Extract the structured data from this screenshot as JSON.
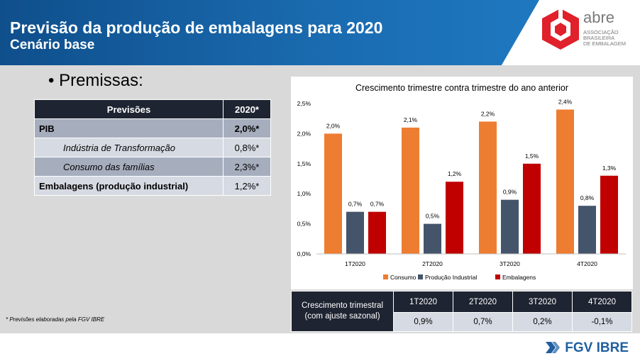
{
  "header": {
    "title": "Previsão da produção de embalagens para 2020",
    "subtitle": "Cenário base"
  },
  "logo": {
    "name": "abre",
    "line1": "ASSOCIAÇÃO",
    "line2": "BRASILEIRA",
    "line3": "DE EMBALAGEM"
  },
  "bullet": "• Premissas:",
  "forecast_table": {
    "col1": "Previsões",
    "col2": "2020*",
    "rows": [
      {
        "label": "PIB",
        "value": "2,0%*"
      },
      {
        "label": "Indústria de Transformação",
        "value": "0,8%*"
      },
      {
        "label": "Consumo das famílias",
        "value": "2,3%*"
      },
      {
        "label": "Embalagens (produção industrial)",
        "value": "1,2%*"
      }
    ]
  },
  "note": "* Previsões elaboradas pela FGV IBRE",
  "quarter_table": {
    "label_line1": "Crescimento trimestral",
    "label_line2": "(com ajuste sazonal)",
    "headers": [
      "1T2020",
      "2T2020",
      "3T2020",
      "4T2020"
    ],
    "values": [
      "0,9%",
      "0,7%",
      "0,2%",
      "-0,1%"
    ]
  },
  "footer": {
    "brand": "FGV IBRE"
  },
  "chart_data": {
    "type": "bar",
    "title": "Crescimento trimestre contra trimestre do ano anterior",
    "categories": [
      "1T2020",
      "2T2020",
      "3T2020",
      "4T2020"
    ],
    "ylim": [
      0,
      2.5
    ],
    "yticks": [
      "0,0%",
      "0,5%",
      "1,0%",
      "1,5%",
      "2,0%",
      "2,5%"
    ],
    "legend_position": "bottom",
    "series": [
      {
        "name": "Consumo",
        "color": "#ed7d31",
        "values": [
          2.0,
          2.1,
          2.2,
          2.4
        ],
        "labels": [
          "2,0%",
          "2,1%",
          "2,2%",
          "2,4%"
        ]
      },
      {
        "name": "Produção Industrial",
        "color": "#44546a",
        "values": [
          0.7,
          0.5,
          0.9,
          0.8
        ],
        "labels": [
          "0,7%",
          "0,5%",
          "0,9%",
          "0,8%"
        ]
      },
      {
        "name": "Embalagens",
        "color": "#c00000",
        "values": [
          0.7,
          1.2,
          1.5,
          1.3
        ],
        "labels": [
          "0,7%",
          "1,2%",
          "1,5%",
          "1,3%"
        ]
      }
    ]
  }
}
